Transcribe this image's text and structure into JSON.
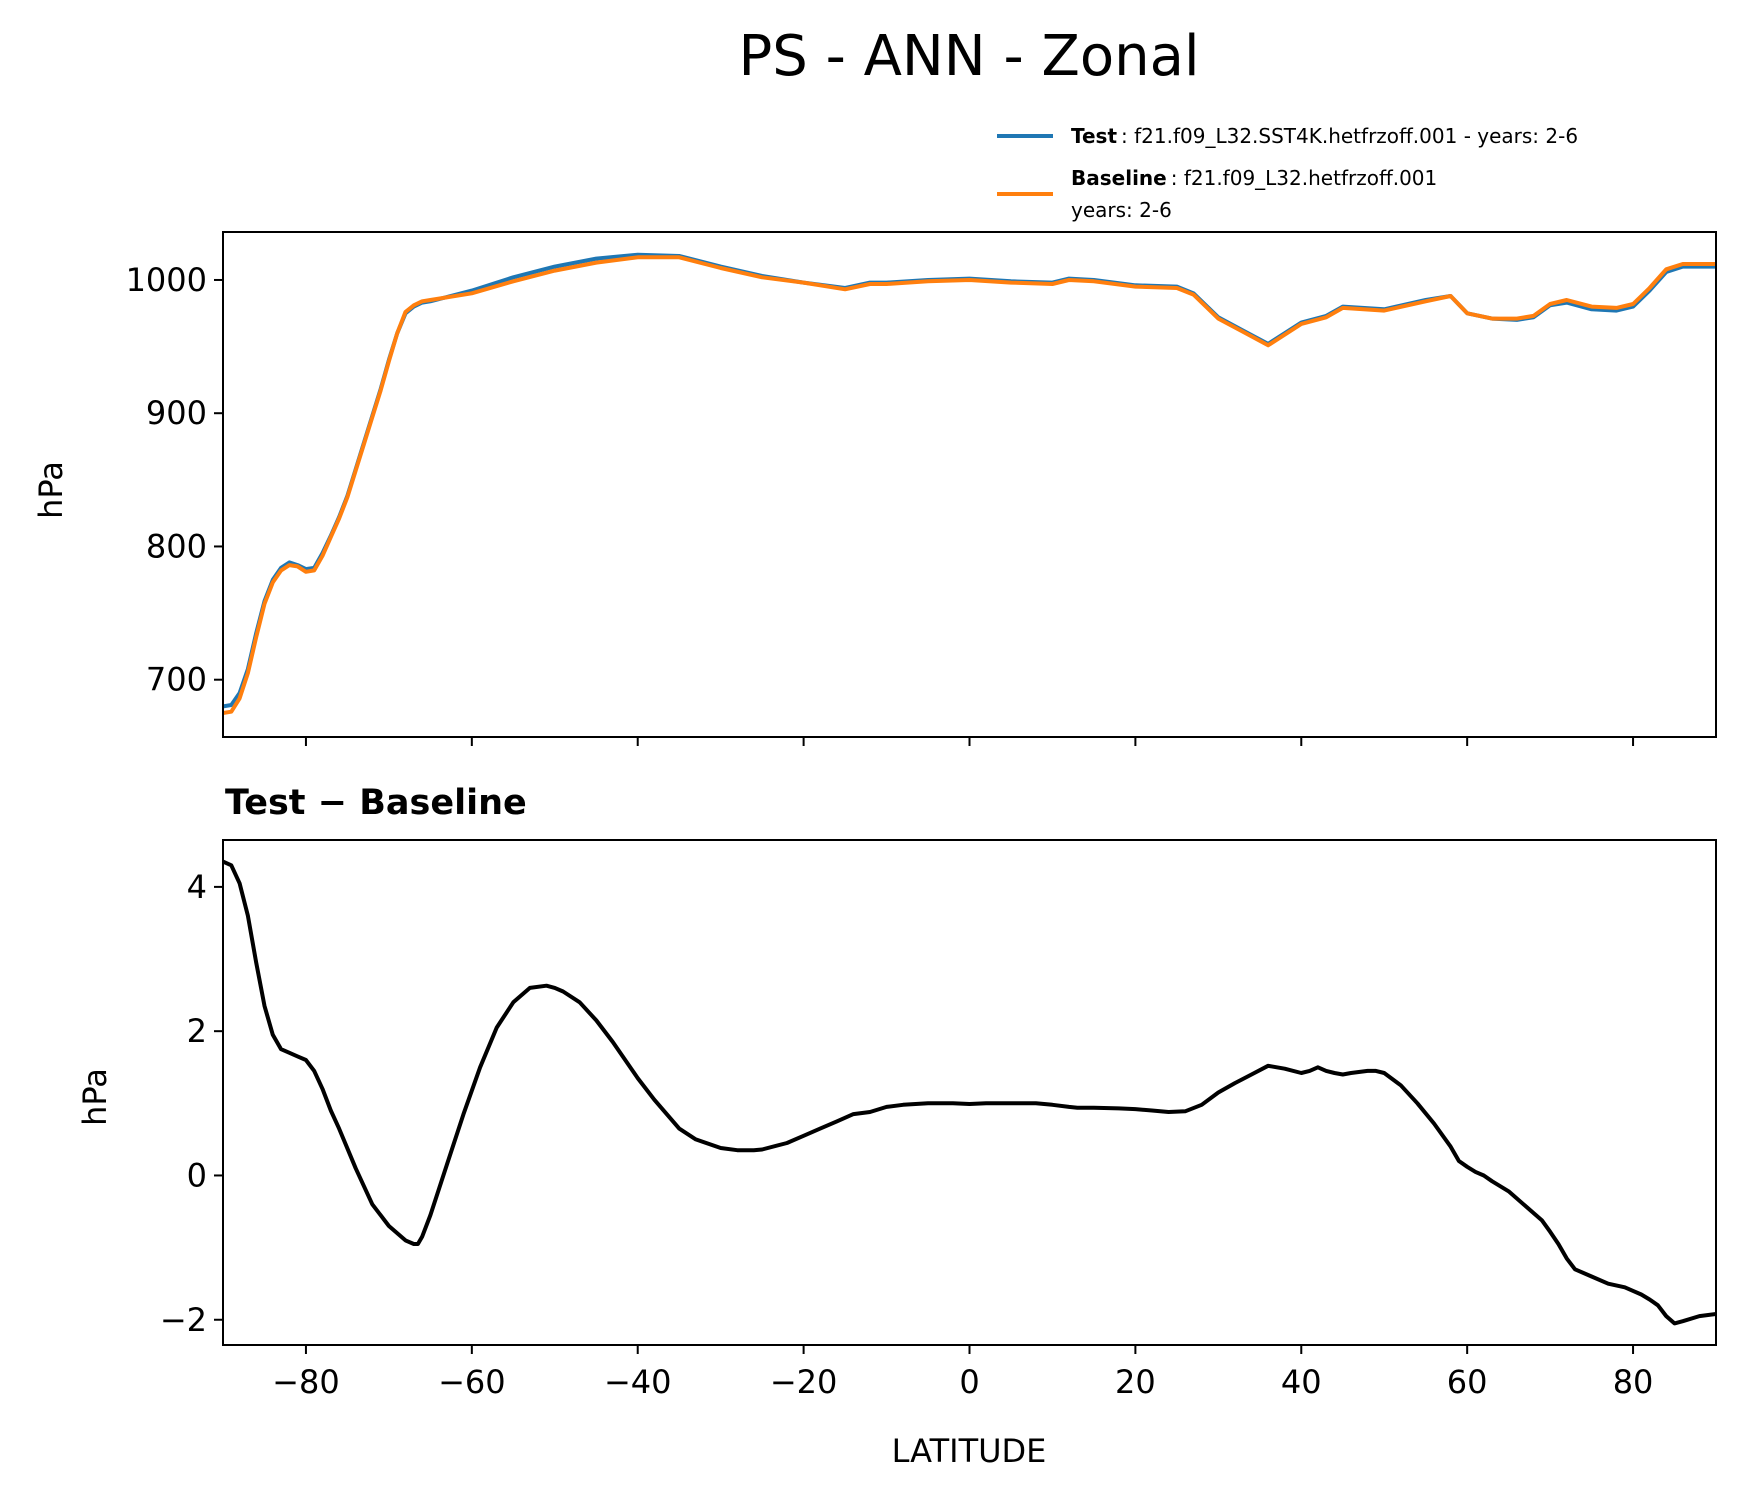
{
  "figure": {
    "title": "PS - ANN - Zonal"
  },
  "legend": {
    "test_name": "Test",
    "test_desc": ": f21.f09_L32.SST4K.hetfrzoff.001 - years: 2-6",
    "baseline_name": "Baseline",
    "baseline_desc": ": f21.f09_L32.hetfrzoff.001",
    "baseline_desc2": "years: 2-6"
  },
  "colors": {
    "test": "#1f77b4",
    "baseline": "#ff7f0e",
    "diff": "#000000"
  },
  "chart_data": [
    {
      "type": "line",
      "ylabel": "hPa",
      "xlim": [
        -90,
        90
      ],
      "ylim": [
        657,
        1036
      ],
      "yticks": [
        700,
        800,
        900,
        1000
      ],
      "ytick_labels": [
        "700",
        "800",
        "900",
        "1000"
      ],
      "xticks": [
        -80,
        -60,
        -40,
        -20,
        0,
        20,
        40,
        60,
        80
      ],
      "grid": false,
      "legend_position": "above top-right",
      "series": [
        {
          "name": "Test",
          "x": [
            -90,
            -89,
            -88,
            -87,
            -86,
            -85,
            -84,
            -83,
            -82,
            -81,
            -80,
            -79,
            -78,
            -77,
            -76,
            -75,
            -74,
            -73,
            -72,
            -71,
            -70,
            -69,
            -68,
            -67,
            -66,
            -65,
            -60,
            -55,
            -50,
            -45,
            -40,
            -35,
            -30,
            -25,
            -20,
            -15,
            -12,
            -10,
            -5,
            0,
            5,
            10,
            12,
            15,
            20,
            25,
            27,
            30,
            33,
            36,
            40,
            43,
            45,
            50,
            55,
            58,
            60,
            63,
            66,
            68,
            70,
            72,
            75,
            78,
            80,
            82,
            84,
            86,
            88,
            90
          ],
          "y": [
            680,
            681,
            690,
            708,
            735,
            759,
            775,
            784,
            788,
            786,
            783,
            784,
            795,
            808,
            822,
            838,
            858,
            878,
            898,
            918,
            940,
            960,
            975,
            980,
            983,
            984,
            992,
            1002,
            1010,
            1016,
            1019,
            1018,
            1010,
            1003,
            998,
            994,
            998,
            998,
            1000,
            1001,
            999,
            998,
            1001,
            1000,
            996,
            995,
            990,
            972,
            962,
            952,
            968,
            973,
            980,
            978,
            985,
            988,
            975,
            971,
            970,
            972,
            981,
            983,
            978,
            977,
            980,
            992,
            1006,
            1010,
            1010,
            1010
          ]
        },
        {
          "name": "Baseline",
          "x": [
            -90,
            -89,
            -88,
            -87,
            -86,
            -85,
            -84,
            -83,
            -82,
            -81,
            -80,
            -79,
            -78,
            -77,
            -76,
            -75,
            -74,
            -73,
            -72,
            -71,
            -70,
            -69,
            -68,
            -67,
            -66,
            -65,
            -60,
            -55,
            -50,
            -45,
            -40,
            -35,
            -30,
            -25,
            -20,
            -15,
            -12,
            -10,
            -5,
            0,
            5,
            10,
            12,
            15,
            20,
            25,
            27,
            30,
            33,
            36,
            40,
            43,
            45,
            50,
            55,
            58,
            60,
            63,
            66,
            68,
            70,
            72,
            75,
            78,
            80,
            82,
            84,
            86,
            88,
            90
          ],
          "y": [
            675,
            676,
            686,
            705,
            732,
            757,
            773,
            782,
            786,
            785,
            781,
            782,
            793,
            807,
            821,
            837,
            857,
            877,
            897,
            917,
            939,
            960,
            976,
            981,
            984,
            985,
            990,
            999,
            1007,
            1013,
            1017,
            1017,
            1009,
            1002,
            998,
            993,
            997,
            997,
            999,
            1000,
            998,
            997,
            1000,
            999,
            995,
            994,
            989,
            971,
            961,
            951,
            967,
            972,
            979,
            977,
            984,
            988,
            975,
            971,
            971,
            973,
            982,
            985,
            980,
            979,
            982,
            994,
            1008,
            1012,
            1012,
            1012
          ]
        }
      ]
    },
    {
      "type": "line",
      "title": "Test − Baseline",
      "xlabel": "LATITUDE",
      "ylabel": "hPa",
      "xlim": [
        -90,
        90
      ],
      "ylim": [
        -2.35,
        4.65
      ],
      "yticks": [
        -2,
        0,
        2,
        4
      ],
      "ytick_labels": [
        "−2",
        "0",
        "2",
        "4"
      ],
      "xticks": [
        -80,
        -60,
        -40,
        -20,
        0,
        20,
        40,
        60,
        80
      ],
      "xtick_labels": [
        "−80",
        "−60",
        "−40",
        "−20",
        "0",
        "20",
        "40",
        "60",
        "80"
      ],
      "grid": false,
      "series": [
        {
          "x": [
            -90,
            -89,
            -88,
            -87,
            -86,
            -85,
            -84,
            -83,
            -82,
            -81,
            -80,
            -79,
            -78,
            -77,
            -76,
            -74,
            -72,
            -70,
            -68,
            -67,
            -66.5,
            -66,
            -65,
            -63,
            -61,
            -59,
            -57,
            -55,
            -53,
            -51,
            -50,
            -49,
            -47,
            -45,
            -43,
            -40,
            -38,
            -35,
            -33,
            -30,
            -28,
            -26,
            -25,
            -22,
            -20,
            -18,
            -16,
            -14,
            -12,
            -10,
            -8,
            -5,
            -2,
            0,
            2,
            5,
            8,
            10,
            12,
            13,
            15,
            18,
            20,
            22,
            24,
            26,
            28,
            30,
            32,
            34,
            36,
            38,
            40,
            41,
            42,
            43,
            44,
            45,
            46,
            48,
            49,
            50,
            52,
            54,
            56,
            58,
            59,
            60,
            61,
            62,
            63,
            65,
            67,
            69,
            70,
            71,
            72,
            73,
            75,
            77,
            79,
            80,
            81,
            82,
            83,
            84,
            85,
            86,
            88,
            90
          ],
          "y": [
            4.35,
            4.3,
            4.05,
            3.6,
            2.95,
            2.35,
            1.95,
            1.75,
            1.7,
            1.65,
            1.6,
            1.45,
            1.2,
            0.9,
            0.65,
            0.1,
            -0.4,
            -0.7,
            -0.9,
            -0.95,
            -0.95,
            -0.85,
            -0.55,
            0.15,
            0.85,
            1.5,
            2.05,
            2.4,
            2.6,
            2.63,
            2.6,
            2.55,
            2.4,
            2.15,
            1.85,
            1.35,
            1.05,
            0.65,
            0.5,
            0.38,
            0.35,
            0.35,
            0.36,
            0.45,
            0.55,
            0.65,
            0.75,
            0.85,
            0.88,
            0.95,
            0.98,
            1.0,
            1.0,
            0.99,
            1.0,
            1.0,
            1.0,
            0.98,
            0.95,
            0.94,
            0.94,
            0.93,
            0.92,
            0.9,
            0.88,
            0.89,
            0.98,
            1.15,
            1.28,
            1.4,
            1.52,
            1.48,
            1.42,
            1.45,
            1.5,
            1.45,
            1.42,
            1.4,
            1.42,
            1.45,
            1.45,
            1.42,
            1.25,
            1.0,
            0.72,
            0.4,
            0.2,
            0.12,
            0.05,
            0.0,
            -0.08,
            -0.22,
            -0.42,
            -0.62,
            -0.78,
            -0.95,
            -1.15,
            -1.3,
            -1.4,
            -1.5,
            -1.55,
            -1.6,
            -1.65,
            -1.72,
            -1.8,
            -1.95,
            -2.05,
            -2.02,
            -1.95,
            -1.92
          ]
        }
      ]
    }
  ]
}
